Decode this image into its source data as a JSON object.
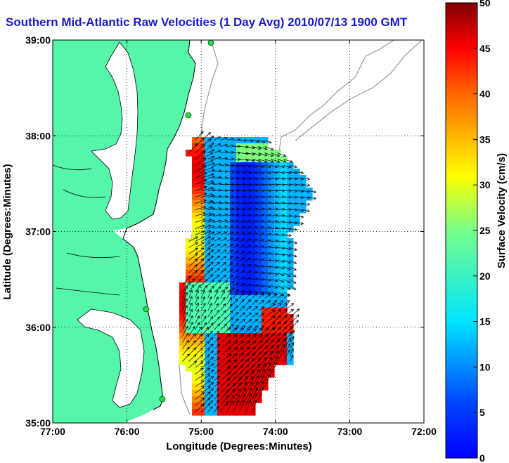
{
  "title": "Southern Mid-Atlantic Raw Velocities (1 Day Avg) 2010/07/13 1900 GMT",
  "map": {
    "xlabel": "Longitude (Degrees:Minutes)",
    "ylabel": "Latitude (Degrees:Minutes)",
    "x_ticks": [
      "77:00",
      "76:00",
      "75:00",
      "74:00",
      "73:00",
      "72:00"
    ],
    "y_ticks": [
      "39:00",
      "38:00",
      "37:00",
      "36:00",
      "35:00"
    ],
    "lon_range": [
      -77,
      -72
    ],
    "lat_range": [
      35,
      39
    ],
    "land_color": "#55f5aa",
    "water_color": "#ffffff",
    "grid": true
  },
  "colorbar": {
    "label": "Surface Velocity (cm/s)",
    "ticks": [
      "0",
      "5",
      "10",
      "15",
      "20",
      "25",
      "30",
      "35",
      "40",
      "45",
      "50"
    ],
    "range": [
      0,
      50
    ],
    "colormap": "jet"
  }
}
